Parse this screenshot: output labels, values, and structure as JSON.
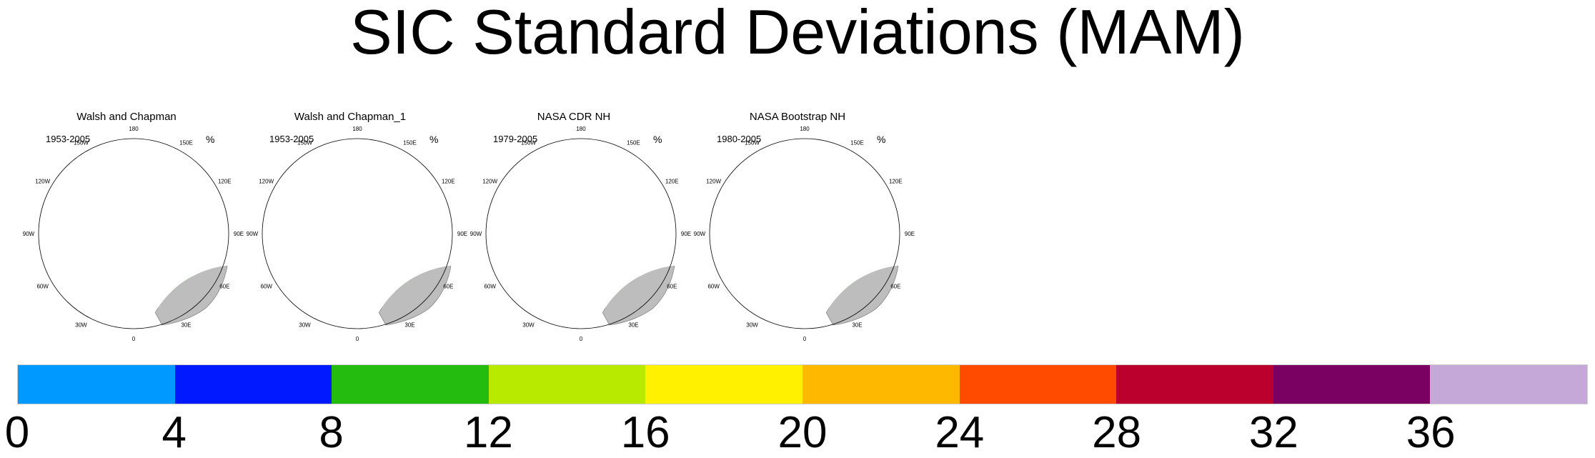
{
  "title": "SIC Standard Deviations (MAM)",
  "panels": [
    {
      "title": "Walsh and Chapman",
      "years": "1953-2005",
      "units": "%",
      "pole_hole": false
    },
    {
      "title": "Walsh and Chapman_1",
      "years": "1953-2005",
      "units": "%",
      "pole_hole": false
    },
    {
      "title": "NASA CDR NH",
      "years": "1979-2005",
      "units": "%",
      "pole_hole": true
    },
    {
      "title": "NASA Bootstrap NH",
      "years": "1980-2005",
      "units": "%",
      "pole_hole": true
    }
  ],
  "longitude_labels": [
    "180",
    "150E",
    "120E",
    "90E",
    "60E",
    "30E",
    "0",
    "30W",
    "60W",
    "90W",
    "120W",
    "150W"
  ],
  "colorbar": {
    "ticks": [
      "0",
      "4",
      "8",
      "12",
      "16",
      "20",
      "24",
      "28",
      "32",
      "36"
    ],
    "colors": [
      "#0099ff",
      "#0019ff",
      "#24bc0e",
      "#b8ea00",
      "#fff100",
      "#ffb800",
      "#ff4b00",
      "#bb002e",
      "#7a0062",
      "#c6a8d8"
    ]
  },
  "colors": {
    "land": "#bdbdbd",
    "ocean": "#ffffff",
    "ice_low": "#0099ff"
  }
}
